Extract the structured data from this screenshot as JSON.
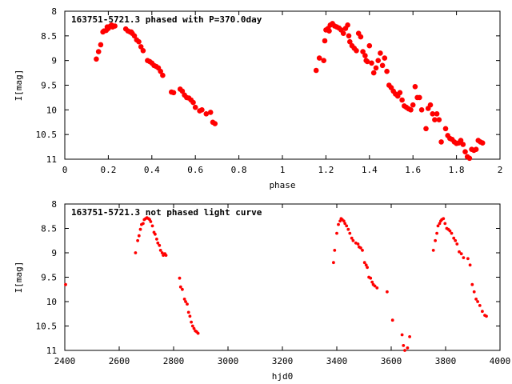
{
  "chart_data": [
    {
      "type": "scatter",
      "title": "163751-5721.3 phased with P=370.0day",
      "xlabel": "phase",
      "ylabel": "I[mag]",
      "xlim": [
        0,
        2
      ],
      "ylim": [
        11,
        8
      ],
      "y_inverted": true,
      "grid": false,
      "xticks": [
        0,
        0.2,
        0.4,
        0.6,
        0.8,
        1,
        1.2,
        1.4,
        1.6,
        1.8,
        2
      ],
      "xtick_labels": [
        "0",
        "0.2",
        "0.4",
        "0.6",
        "0.8",
        "1",
        "1.2",
        "1.4",
        "1.6",
        "1.8",
        "2"
      ],
      "yticks": [
        8,
        8.5,
        9,
        9.5,
        10,
        10.5,
        11
      ],
      "ytick_labels": [
        "8",
        "8.5",
        "9",
        "9.5",
        "10",
        "10.5",
        "11"
      ],
      "marker_color": "#ff0000",
      "marker": "large",
      "series": [
        {
          "x": [
            0.145,
            0.155,
            0.165,
            0.175,
            0.18,
            0.19,
            0.195,
            0.2,
            0.21,
            0.215,
            0.22,
            0.23,
            0.28,
            0.29,
            0.3,
            0.305,
            0.31,
            0.32,
            0.33,
            0.34,
            0.35,
            0.36,
            0.38,
            0.39,
            0.4,
            0.41,
            0.42,
            0.43,
            0.44,
            0.45,
            0.49,
            0.5,
            0.53,
            0.54,
            0.55,
            0.56,
            0.57,
            0.58,
            0.59,
            0.6,
            0.62,
            0.63,
            0.65,
            0.67,
            0.68,
            0.69
          ],
          "y": [
            8.97,
            8.82,
            8.68,
            8.42,
            8.4,
            8.39,
            8.32,
            8.35,
            8.3,
            8.28,
            8.32,
            8.3,
            8.36,
            8.4,
            8.42,
            8.42,
            8.45,
            8.5,
            8.58,
            8.62,
            8.72,
            8.8,
            9.0,
            9.02,
            9.05,
            9.1,
            9.12,
            9.15,
            9.22,
            9.3,
            9.64,
            9.65,
            9.58,
            9.62,
            9.7,
            9.75,
            9.76,
            9.8,
            9.85,
            9.95,
            10.02,
            10.0,
            10.08,
            10.05,
            10.25,
            10.28
          ]
        },
        {
          "x": [
            1.155,
            1.17,
            1.19,
            1.195,
            1.2,
            1.21,
            1.215,
            1.22,
            1.23,
            1.24,
            1.25,
            1.26,
            1.27,
            1.28,
            1.29,
            1.3,
            1.305,
            1.31,
            1.32,
            1.33,
            1.34,
            1.35,
            1.36,
            1.37,
            1.38,
            1.385,
            1.39,
            1.4,
            1.41,
            1.42,
            1.43,
            1.44,
            1.45,
            1.46,
            1.47,
            1.48,
            1.49,
            1.5,
            1.51,
            1.52,
            1.53,
            1.54,
            1.55,
            1.56,
            1.57,
            1.58,
            1.59,
            1.6,
            1.61,
            1.62,
            1.63,
            1.64,
            1.66,
            1.67,
            1.68,
            1.69,
            1.7,
            1.71,
            1.72,
            1.73,
            1.75,
            1.76,
            1.77,
            1.78,
            1.79,
            1.8,
            1.81,
            1.82,
            1.83,
            1.84,
            1.85,
            1.86,
            1.87,
            1.88,
            1.89,
            1.9,
            1.91,
            1.92
          ],
          "y": [
            9.2,
            8.95,
            9.0,
            8.6,
            8.38,
            8.35,
            8.4,
            8.28,
            8.25,
            8.3,
            8.32,
            8.34,
            8.38,
            8.45,
            8.35,
            8.28,
            8.5,
            8.62,
            8.7,
            8.75,
            8.8,
            8.45,
            8.52,
            8.82,
            8.9,
            9.0,
            9.02,
            8.7,
            9.05,
            9.25,
            9.15,
            9.0,
            8.85,
            9.1,
            8.95,
            9.22,
            9.5,
            9.55,
            9.62,
            9.68,
            9.72,
            9.65,
            9.8,
            9.92,
            9.95,
            9.98,
            10.0,
            9.9,
            9.53,
            9.75,
            9.75,
            10.0,
            10.38,
            9.97,
            9.9,
            10.08,
            10.2,
            10.08,
            10.2,
            10.65,
            10.38,
            10.52,
            10.58,
            10.6,
            10.65,
            10.68,
            10.67,
            10.62,
            10.7,
            10.85,
            10.95,
            10.98,
            10.8,
            10.82,
            10.8,
            10.62,
            10.65,
            10.67
          ]
        }
      ]
    },
    {
      "type": "scatter",
      "title": "163751-5721.3 not phased light curve",
      "xlabel": "hjd0",
      "ylabel": "I[mag]",
      "xlim": [
        2400,
        4000
      ],
      "ylim": [
        11,
        8
      ],
      "y_inverted": true,
      "grid": false,
      "xticks": [
        2400,
        2600,
        2800,
        3000,
        3200,
        3400,
        3600,
        3800,
        4000
      ],
      "xtick_labels": [
        "2400",
        "2600",
        "2800",
        "3000",
        "3200",
        "3400",
        "3600",
        "3800",
        "4000"
      ],
      "yticks": [
        8,
        8.5,
        9,
        9.5,
        10,
        10.5,
        11
      ],
      "ytick_labels": [
        "8",
        "8.5",
        "9",
        "9.5",
        "10",
        "10.5",
        "11"
      ],
      "marker_color": "#ff0000",
      "marker": "small",
      "series": [
        {
          "x": [
            2403,
            2660,
            2668,
            2673,
            2678,
            2682,
            2688,
            2692,
            2697,
            2702,
            2708,
            2712,
            2716,
            2722,
            2728,
            2732,
            2738,
            2742,
            2748,
            2752,
            2758,
            2762,
            2768,
            2772,
            2822,
            2826,
            2832,
            2840,
            2844,
            2850,
            2855,
            2860,
            2865,
            2870,
            2875,
            2880,
            2885,
            2890,
            3388,
            3392,
            3400,
            3406,
            3412,
            3416,
            3420,
            3426,
            3430,
            3436,
            3442,
            3448,
            3455,
            3460,
            3470,
            3478,
            3482,
            3488,
            3494,
            3502,
            3508,
            3512,
            3518,
            3524,
            3530,
            3534,
            3540,
            3548,
            3585,
            3605,
            3640,
            3645,
            3650,
            3660,
            3668,
            3755,
            3762,
            3768,
            3772,
            3778,
            3782,
            3786,
            3792,
            3798,
            3804,
            3810,
            3816,
            3822,
            3830,
            3836,
            3842,
            3850,
            3858,
            3866,
            3882,
            3890,
            3898,
            3905,
            3912,
            3918,
            3926,
            3935,
            3944,
            3950
          ],
          "y": [
            9.65,
            9.0,
            8.75,
            8.65,
            8.52,
            8.42,
            8.4,
            8.32,
            8.3,
            8.28,
            8.3,
            8.32,
            8.36,
            8.45,
            8.58,
            8.62,
            8.72,
            8.8,
            8.85,
            8.95,
            9.0,
            9.05,
            9.02,
            9.05,
            9.52,
            9.7,
            9.75,
            9.95,
            10.0,
            10.05,
            10.22,
            10.3,
            10.42,
            10.5,
            10.55,
            10.6,
            10.62,
            10.65,
            9.2,
            8.95,
            8.6,
            8.42,
            8.35,
            8.3,
            8.32,
            8.35,
            8.4,
            8.45,
            8.52,
            8.6,
            8.7,
            8.75,
            8.8,
            8.82,
            8.88,
            8.9,
            8.95,
            9.2,
            9.25,
            9.3,
            9.5,
            9.52,
            9.6,
            9.65,
            9.68,
            9.72,
            9.8,
            10.38,
            10.68,
            10.9,
            11.0,
            10.95,
            10.72,
            8.95,
            8.75,
            8.6,
            8.45,
            8.4,
            8.35,
            8.32,
            8.3,
            8.4,
            8.5,
            8.52,
            8.55,
            8.6,
            8.7,
            8.75,
            8.82,
            8.98,
            9.02,
            9.1,
            9.12,
            9.25,
            9.65,
            9.8,
            9.95,
            10.0,
            10.08,
            10.2,
            10.28,
            10.3
          ]
        }
      ]
    }
  ]
}
